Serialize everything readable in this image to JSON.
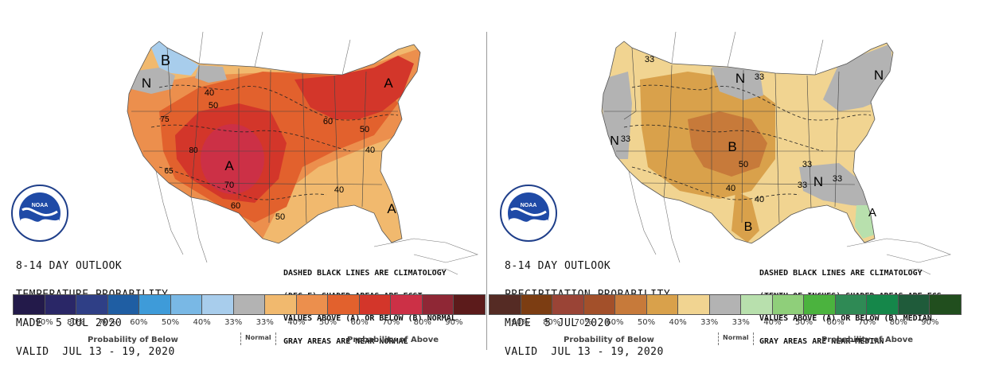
{
  "temperature": {
    "title_lines": [
      "8-14 DAY OUTLOOK",
      "TEMPERATURE PROBABILITY",
      "MADE  5 JUL 2020",
      "VALID  JUL 13 - 19, 2020"
    ],
    "notes_lines": [
      "DASHED BLACK LINES ARE CLIMATOLOGY",
      "(DEG F) SHADED AREAS ARE FCST",
      "VALUES ABOVE (A) OR BELOW (B) NORMAL",
      "GRAY AREAS ARE NEAR-NORMAL"
    ],
    "colors": [
      "#231a4a",
      "#2a2767",
      "#2f3f86",
      "#1f5ea3",
      "#3e9bd9",
      "#79b8e5",
      "#a8cdec",
      "#b3b3b3",
      "#f1b96e",
      "#ec8f4d",
      "#e2612d",
      "#d3362a",
      "#cc3046",
      "#8f2735",
      "#5c1b1b"
    ],
    "tick_labels": [
      "90%",
      "80%",
      "70%",
      "60%",
      "50%",
      "40%",
      "33%",
      "33%",
      "40%",
      "50%",
      "60%",
      "70%",
      "80%",
      "90%"
    ],
    "caption_below": "Probability of Below",
    "caption_normal": "Normal",
    "caption_above": "Probability of Above",
    "map_labels": [
      {
        "text": "B"
      },
      {
        "text": "N"
      },
      {
        "text": "A"
      },
      {
        "text": "A"
      },
      {
        "text": "A"
      },
      {
        "text": "40"
      },
      {
        "text": "50"
      },
      {
        "text": "75"
      },
      {
        "text": "80"
      },
      {
        "text": "70"
      },
      {
        "text": "60"
      },
      {
        "text": "65"
      },
      {
        "text": "50"
      },
      {
        "text": "60"
      },
      {
        "text": "50"
      },
      {
        "text": "40"
      },
      {
        "text": "40"
      }
    ]
  },
  "precipitation": {
    "title_lines": [
      "8-14 DAY OUTLOOK",
      "PRECIPITATION PROBABILITY",
      "MADE  5 JUL 2020",
      "VALID  JUL 13 - 19, 2020"
    ],
    "notes_lines": [
      "DASHED BLACK LINES ARE CLIMATOLOGY",
      "(TENTH OF INCHES) SHADED AREAS ARE FCS",
      "VALUES ABOVE (A) OR BELOW (B) MEDIAN",
      "GRAY AREAS ARE NEAR-MEDIAN"
    ],
    "colors": [
      "#552b24",
      "#7c3d12",
      "#9a4436",
      "#a3502a",
      "#c77a3a",
      "#d9a14b",
      "#f1d491",
      "#b3b3b3",
      "#b8e0ad",
      "#8fcf7a",
      "#4bb33e",
      "#2f8a55",
      "#15874a",
      "#1f5b3a",
      "#214e1e"
    ],
    "tick_labels": [
      "90%",
      "80%",
      "70%",
      "60%",
      "50%",
      "40%",
      "33%",
      "33%",
      "40%",
      "50%",
      "60%",
      "70%",
      "80%",
      "90%"
    ],
    "caption_below": "Probability of Below",
    "caption_normal": "Normal",
    "caption_above": "Probability of Above",
    "map_labels": [
      {
        "text": "33"
      },
      {
        "text": "N"
      },
      {
        "text": "33"
      },
      {
        "text": "N"
      },
      {
        "text": "N"
      },
      {
        "text": "33"
      },
      {
        "text": "B"
      },
      {
        "text": "50"
      },
      {
        "text": "40"
      },
      {
        "text": "40"
      },
      {
        "text": "B"
      },
      {
        "text": "33"
      },
      {
        "text": "N"
      },
      {
        "text": "33"
      },
      {
        "text": "A"
      },
      {
        "text": "33"
      }
    ]
  }
}
